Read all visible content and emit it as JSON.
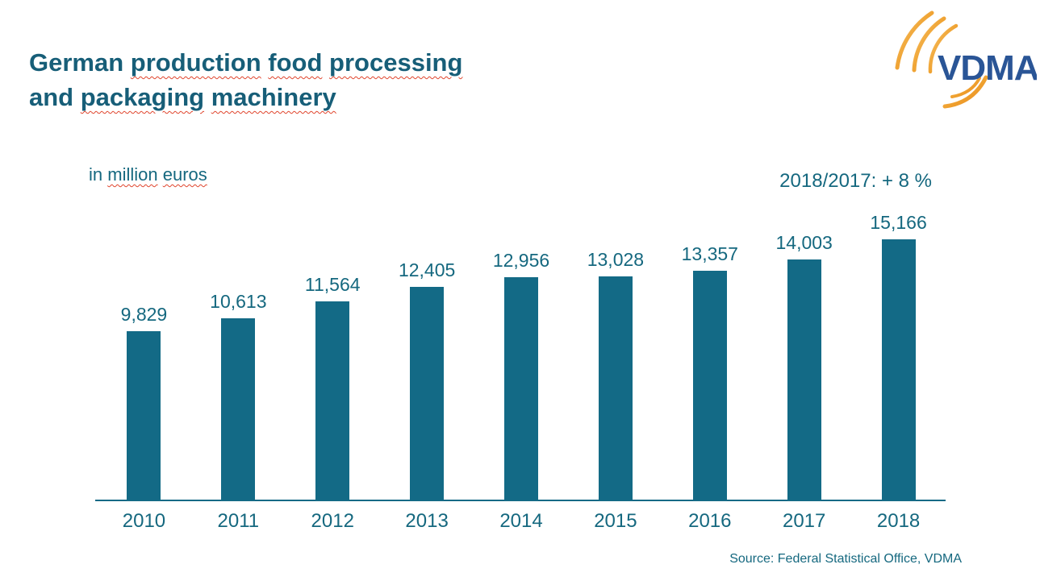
{
  "slide": {
    "title": {
      "line1": {
        "w1": "German",
        "w2": "production",
        "w3": "food",
        "w4": "processing"
      },
      "line2": {
        "w1": "and",
        "w2": "packaging",
        "w3": "machinery"
      }
    },
    "subtitle": {
      "w1": "in",
      "w2": "million",
      "w3": "euros"
    },
    "annotation": "2018/2017: + 8 %",
    "source": "Source: Federal Statistical Office, VDMA",
    "logo": {
      "text": "VDMA"
    }
  },
  "colors": {
    "title_teal": "#175E78",
    "teal": "#15687F",
    "bar_teal": "#136A86",
    "squiggle_red": "#E0442C",
    "logo_blue": "#2A5596",
    "logo_orange": "#EFA02E",
    "logo_orange_light": "#F6C46A"
  },
  "chart_data": {
    "type": "bar",
    "title": "German production food processing and packaging machinery",
    "ylabel": "in million euros",
    "xlabel": "",
    "categories": [
      "2010",
      "2011",
      "2012",
      "2013",
      "2014",
      "2015",
      "2016",
      "2017",
      "2018"
    ],
    "values": [
      9829,
      10613,
      11564,
      12405,
      12956,
      13028,
      13357,
      14003,
      15166
    ],
    "value_labels": [
      "9,829",
      "10,613",
      "11,564",
      "12,405",
      "12,956",
      "13,028",
      "13,357",
      "14,003",
      "15,166"
    ],
    "annotation": "2018/2017: + 8 %",
    "ylim": [
      0,
      15800
    ],
    "grid": false,
    "legend": false,
    "bar_color": "#136A86"
  }
}
